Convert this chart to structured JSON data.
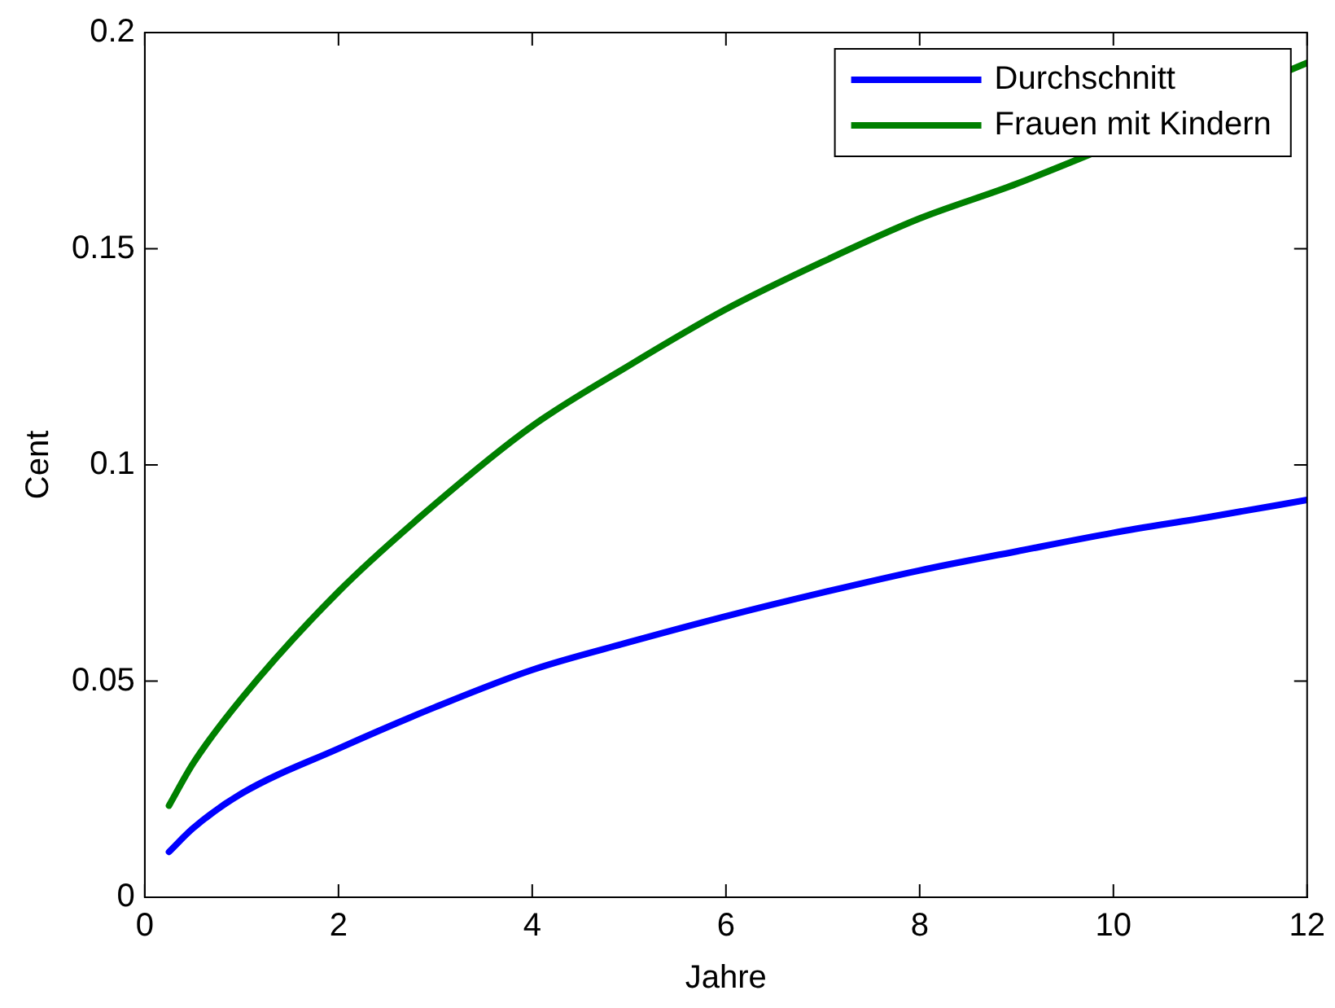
{
  "chart_data": {
    "type": "line",
    "xlabel": "Jahre",
    "ylabel": "Cent",
    "xlim": [
      0,
      12
    ],
    "xticks": [
      0,
      2,
      4,
      6,
      8,
      10,
      12
    ],
    "ylim": [
      0,
      0.2
    ],
    "yticks": [
      0,
      0.05,
      0.1,
      0.15,
      0.2
    ],
    "grid": false,
    "legend": "top right",
    "marker": "none",
    "line_style": "solid",
    "x": [
      0.25,
      0.5,
      1,
      2,
      3,
      4,
      5,
      6,
      7,
      8,
      9,
      10,
      11,
      12
    ],
    "series": [
      {
        "name": "Durchschnitt",
        "color": "#0000ff",
        "values": [
          0.0105,
          0.016,
          0.024,
          0.0344,
          0.044,
          0.0526,
          0.059,
          0.065,
          0.0705,
          0.0756,
          0.08,
          0.0843,
          0.088,
          0.0919
        ]
      },
      {
        "name": "Frauen mit Kindern",
        "color": "#008000",
        "values": [
          0.0212,
          0.031,
          0.046,
          0.0707,
          0.091,
          0.109,
          0.123,
          0.136,
          0.147,
          0.157,
          0.165,
          null,
          null,
          0.193
        ]
      }
    ]
  }
}
